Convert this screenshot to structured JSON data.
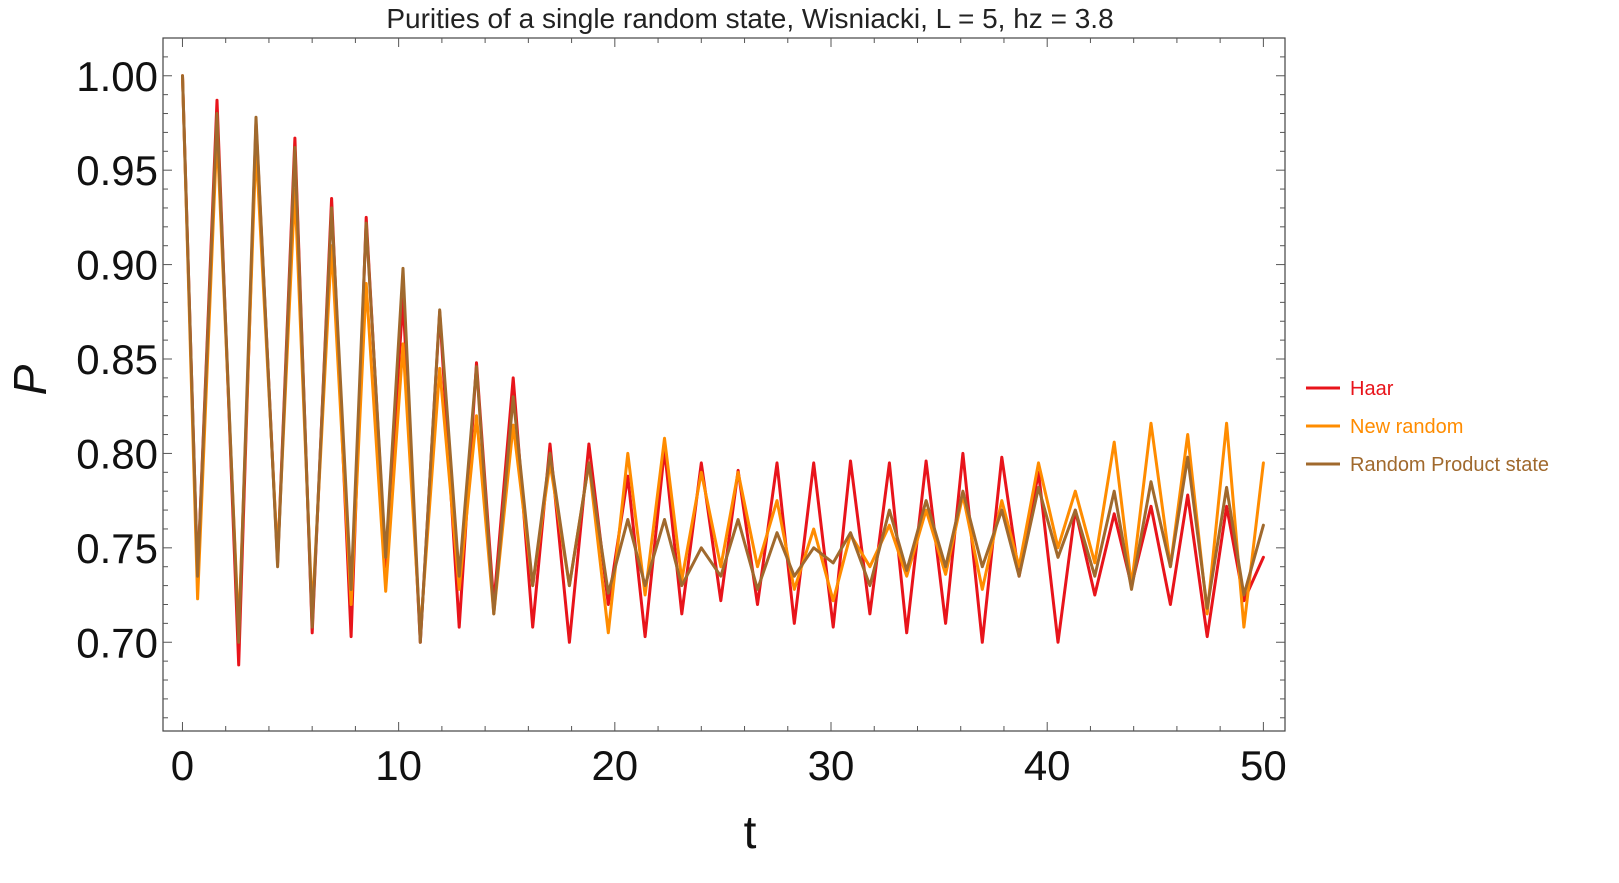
{
  "chart_data": {
    "type": "line",
    "title": "Purities of a single random state, Wisniacki, L = 5, hz = 3.8",
    "xlabel": "t",
    "ylabel": "P",
    "xlim": [
      -0.9,
      51
    ],
    "ylim": [
      0.653,
      1.02
    ],
    "x_ticks": [
      0,
      10,
      20,
      30,
      40,
      50
    ],
    "x_tick_labels": [
      "0",
      "10",
      "20",
      "30",
      "40",
      "50"
    ],
    "y_ticks": [
      0.7,
      0.75,
      0.8,
      0.85,
      0.9,
      0.95,
      1.0
    ],
    "y_tick_labels": [
      "0.70",
      "0.75",
      "0.80",
      "0.85",
      "0.90",
      "0.95",
      "1.00"
    ],
    "grid": false,
    "legend_position": "right",
    "series": [
      {
        "name": "Haar",
        "color": "#e8141b",
        "x": [
          0,
          0.7,
          1.6,
          2.6,
          3.4,
          4.4,
          5.2,
          6.0,
          6.9,
          7.8,
          8.5,
          9.4,
          10.2,
          11.0,
          11.9,
          12.8,
          13.6,
          14.4,
          15.3,
          16.2,
          17.0,
          17.9,
          18.8,
          19.7,
          20.6,
          21.4,
          22.3,
          23.1,
          24.0,
          24.9,
          25.7,
          26.6,
          27.5,
          28.3,
          29.2,
          30.1,
          30.9,
          31.8,
          32.7,
          33.5,
          34.4,
          35.3,
          36.1,
          37.0,
          37.9,
          38.7,
          39.6,
          40.5,
          41.3,
          42.2,
          43.1,
          43.9,
          44.8,
          45.7,
          46.5,
          47.4,
          48.3,
          49.1,
          50.0
        ],
        "y": [
          1.0,
          0.735,
          0.987,
          0.688,
          0.975,
          0.742,
          0.967,
          0.705,
          0.935,
          0.703,
          0.925,
          0.74,
          0.882,
          0.7,
          0.875,
          0.708,
          0.848,
          0.72,
          0.84,
          0.708,
          0.805,
          0.7,
          0.805,
          0.72,
          0.788,
          0.703,
          0.802,
          0.715,
          0.795,
          0.722,
          0.791,
          0.72,
          0.795,
          0.71,
          0.795,
          0.708,
          0.796,
          0.715,
          0.795,
          0.705,
          0.796,
          0.71,
          0.8,
          0.7,
          0.798,
          0.735,
          0.79,
          0.7,
          0.77,
          0.725,
          0.768,
          0.73,
          0.772,
          0.72,
          0.778,
          0.703,
          0.772,
          0.722,
          0.745
        ]
      },
      {
        "name": "New random",
        "color": "#ff8c00",
        "x": [
          0,
          0.7,
          1.6,
          2.6,
          3.4,
          4.4,
          5.2,
          6.0,
          6.9,
          7.8,
          8.5,
          9.4,
          10.2,
          11.0,
          11.9,
          12.8,
          13.6,
          14.4,
          15.3,
          16.2,
          17.0,
          17.9,
          18.8,
          19.7,
          20.6,
          21.4,
          22.3,
          23.1,
          24.0,
          24.9,
          25.7,
          26.6,
          27.5,
          28.3,
          29.2,
          30.1,
          30.9,
          31.8,
          32.7,
          33.5,
          34.4,
          35.3,
          36.1,
          37.0,
          37.9,
          38.7,
          39.6,
          40.5,
          41.3,
          42.2,
          43.1,
          43.9,
          44.8,
          45.7,
          46.5,
          47.4,
          48.3,
          49.1,
          50.0
        ],
        "y": [
          1.0,
          0.723,
          0.97,
          0.705,
          0.963,
          0.745,
          0.94,
          0.715,
          0.91,
          0.72,
          0.89,
          0.727,
          0.858,
          0.705,
          0.845,
          0.728,
          0.82,
          0.715,
          0.815,
          0.73,
          0.795,
          0.73,
          0.795,
          0.705,
          0.8,
          0.725,
          0.808,
          0.733,
          0.79,
          0.74,
          0.79,
          0.74,
          0.775,
          0.728,
          0.76,
          0.722,
          0.757,
          0.74,
          0.762,
          0.735,
          0.77,
          0.736,
          0.778,
          0.728,
          0.775,
          0.74,
          0.795,
          0.75,
          0.78,
          0.742,
          0.806,
          0.73,
          0.816,
          0.74,
          0.81,
          0.715,
          0.816,
          0.708,
          0.795
        ]
      },
      {
        "name": "Random Product state",
        "color": "#a0692d",
        "x": [
          0,
          0.7,
          1.6,
          2.6,
          3.4,
          4.4,
          5.2,
          6.0,
          6.9,
          7.8,
          8.5,
          9.4,
          10.2,
          11.0,
          11.9,
          12.8,
          13.6,
          14.4,
          15.3,
          16.2,
          17.0,
          17.9,
          18.8,
          19.7,
          20.6,
          21.4,
          22.3,
          23.1,
          24.0,
          24.9,
          25.7,
          26.6,
          27.5,
          28.3,
          29.2,
          30.1,
          30.9,
          31.8,
          32.7,
          33.5,
          34.4,
          35.3,
          36.1,
          37.0,
          37.9,
          38.7,
          39.6,
          40.5,
          41.3,
          42.2,
          43.1,
          43.9,
          44.8,
          45.7,
          46.5,
          47.4,
          48.3,
          49.1,
          50.0
        ],
        "y": [
          1.0,
          0.735,
          0.98,
          0.7,
          0.978,
          0.74,
          0.962,
          0.708,
          0.93,
          0.728,
          0.922,
          0.745,
          0.898,
          0.7,
          0.876,
          0.735,
          0.846,
          0.715,
          0.83,
          0.73,
          0.8,
          0.73,
          0.795,
          0.726,
          0.765,
          0.73,
          0.765,
          0.73,
          0.75,
          0.735,
          0.765,
          0.728,
          0.758,
          0.735,
          0.75,
          0.742,
          0.758,
          0.73,
          0.77,
          0.738,
          0.775,
          0.74,
          0.78,
          0.74,
          0.77,
          0.735,
          0.782,
          0.745,
          0.77,
          0.735,
          0.78,
          0.728,
          0.785,
          0.74,
          0.798,
          0.718,
          0.782,
          0.725,
          0.762
        ]
      }
    ]
  }
}
